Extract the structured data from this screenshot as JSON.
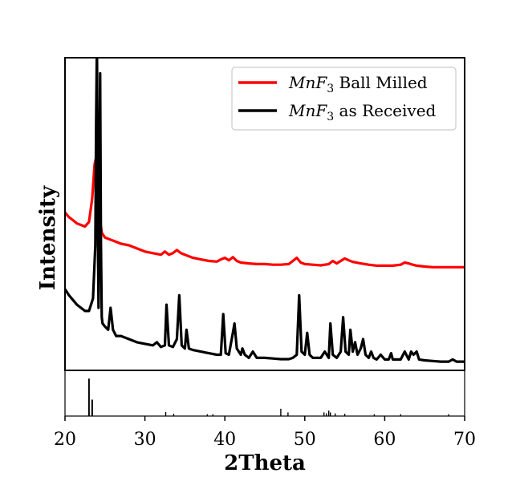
{
  "chart_data": {
    "type": "line",
    "title": "",
    "xlabel": "2Theta",
    "ylabel": "Intensity",
    "xlim": [
      20,
      70
    ],
    "ylim": [
      0,
      1
    ],
    "grid": false,
    "legend_position": "top-right",
    "xticks": [
      20,
      30,
      40,
      50,
      60,
      70
    ],
    "xtick_labels": [
      "20",
      "30",
      "40",
      "50",
      "60",
      "70"
    ],
    "series": [
      {
        "name": "MnF3 Ball Milled",
        "legend_label_main": "MnF",
        "legend_label_sub": "3",
        "legend_label_rest": " Ball Milled",
        "color": "#ff0000",
        "x": [
          20,
          20.5,
          21,
          21.5,
          22,
          22.5,
          23,
          23.4,
          23.7,
          23.9,
          24.1,
          24.3,
          24.6,
          25,
          25.5,
          26,
          27,
          28,
          29,
          30,
          31,
          32,
          32.5,
          33,
          33.5,
          34,
          34.5,
          35,
          36,
          37,
          38,
          39,
          39.5,
          40,
          40.5,
          41,
          41.5,
          42,
          43,
          44,
          45,
          46,
          47,
          48,
          48.5,
          49,
          49.5,
          50,
          51,
          52,
          53,
          53.5,
          54,
          54.5,
          55,
          55.5,
          56,
          57,
          58,
          59,
          60,
          61,
          62,
          62.5,
          63,
          63.5,
          64,
          65,
          66,
          67,
          68,
          69,
          70
        ],
        "y": [
          0.505,
          0.49,
          0.48,
          0.47,
          0.465,
          0.46,
          0.475,
          0.55,
          0.66,
          0.68,
          0.6,
          0.5,
          0.44,
          0.425,
          0.42,
          0.415,
          0.405,
          0.4,
          0.39,
          0.38,
          0.375,
          0.37,
          0.38,
          0.37,
          0.375,
          0.385,
          0.375,
          0.37,
          0.36,
          0.355,
          0.35,
          0.348,
          0.355,
          0.36,
          0.352,
          0.362,
          0.35,
          0.345,
          0.342,
          0.34,
          0.34,
          0.338,
          0.338,
          0.34,
          0.35,
          0.36,
          0.345,
          0.34,
          0.338,
          0.336,
          0.34,
          0.35,
          0.342,
          0.35,
          0.358,
          0.352,
          0.347,
          0.342,
          0.338,
          0.335,
          0.335,
          0.335,
          0.338,
          0.345,
          0.342,
          0.338,
          0.335,
          0.332,
          0.33,
          0.33,
          0.33,
          0.33,
          0.33
        ]
      },
      {
        "name": "MnF3 as Received",
        "legend_label_main": "MnF",
        "legend_label_sub": "3",
        "legend_label_rest": " as Received",
        "color": "#000000",
        "x": [
          20,
          20.5,
          21,
          21.5,
          22,
          22.5,
          23,
          23.5,
          23.8,
          23.9,
          24.0,
          24.1,
          24.2,
          24.3,
          24.4,
          24.5,
          24.6,
          24.7,
          25,
          25.4,
          25.7,
          26,
          26.4,
          27,
          28,
          29,
          30,
          31,
          31.5,
          32,
          32.5,
          32.7,
          33,
          33.5,
          34,
          34.3,
          34.6,
          35,
          35.2,
          35.5,
          36,
          37,
          38,
          39,
          39.5,
          39.8,
          40.1,
          40.5,
          41,
          41.2,
          41.5,
          42,
          42.2,
          42.5,
          43,
          43.5,
          44,
          45,
          46,
          47,
          48,
          48.5,
          49,
          49.3,
          49.6,
          50,
          50.3,
          50.6,
          51,
          52,
          52.5,
          53,
          53.2,
          53.5,
          54,
          54.5,
          54.8,
          55.1,
          55.5,
          55.7,
          56,
          56.3,
          56.6,
          57,
          57.3,
          57.6,
          58,
          58.3,
          58.6,
          59,
          59.5,
          60,
          60.5,
          60.8,
          61,
          62,
          62.5,
          63,
          63.3,
          63.6,
          64,
          64.3,
          65,
          66,
          67,
          68,
          68.5,
          69,
          70
        ],
        "y": [
          0.26,
          0.24,
          0.225,
          0.21,
          0.2,
          0.19,
          0.19,
          0.23,
          0.4,
          0.8,
          1.05,
          0.5,
          0.2,
          0.6,
          0.95,
          0.4,
          0.17,
          0.15,
          0.14,
          0.13,
          0.2,
          0.13,
          0.11,
          0.11,
          0.1,
          0.09,
          0.085,
          0.08,
          0.09,
          0.075,
          0.08,
          0.21,
          0.08,
          0.075,
          0.1,
          0.24,
          0.08,
          0.07,
          0.13,
          0.07,
          0.065,
          0.06,
          0.055,
          0.05,
          0.05,
          0.18,
          0.055,
          0.05,
          0.12,
          0.15,
          0.07,
          0.05,
          0.07,
          0.05,
          0.04,
          0.06,
          0.04,
          0.04,
          0.038,
          0.036,
          0.036,
          0.04,
          0.05,
          0.24,
          0.06,
          0.05,
          0.12,
          0.05,
          0.04,
          0.04,
          0.06,
          0.04,
          0.15,
          0.05,
          0.04,
          0.06,
          0.17,
          0.06,
          0.05,
          0.13,
          0.06,
          0.09,
          0.05,
          0.07,
          0.1,
          0.05,
          0.04,
          0.06,
          0.04,
          0.035,
          0.05,
          0.035,
          0.035,
          0.055,
          0.035,
          0.035,
          0.06,
          0.035,
          0.06,
          0.05,
          0.06,
          0.035,
          0.032,
          0.03,
          0.028,
          0.028,
          0.035,
          0.028,
          0.028
        ]
      }
    ],
    "reference_pattern": {
      "name": "reference sticks",
      "x": [
        23.0,
        23.4,
        32.6,
        33.6,
        37.8,
        38.5,
        47.0,
        47.9,
        52.4,
        52.7,
        53.0,
        53.2,
        53.8,
        55.0,
        58.7,
        62.0,
        68.0
      ],
      "y": [
        0.82,
        0.36,
        0.09,
        0.05,
        0.04,
        0.04,
        0.16,
        0.08,
        0.08,
        0.06,
        0.12,
        0.08,
        0.06,
        0.05,
        0.04,
        0.04,
        0.04
      ]
    }
  }
}
